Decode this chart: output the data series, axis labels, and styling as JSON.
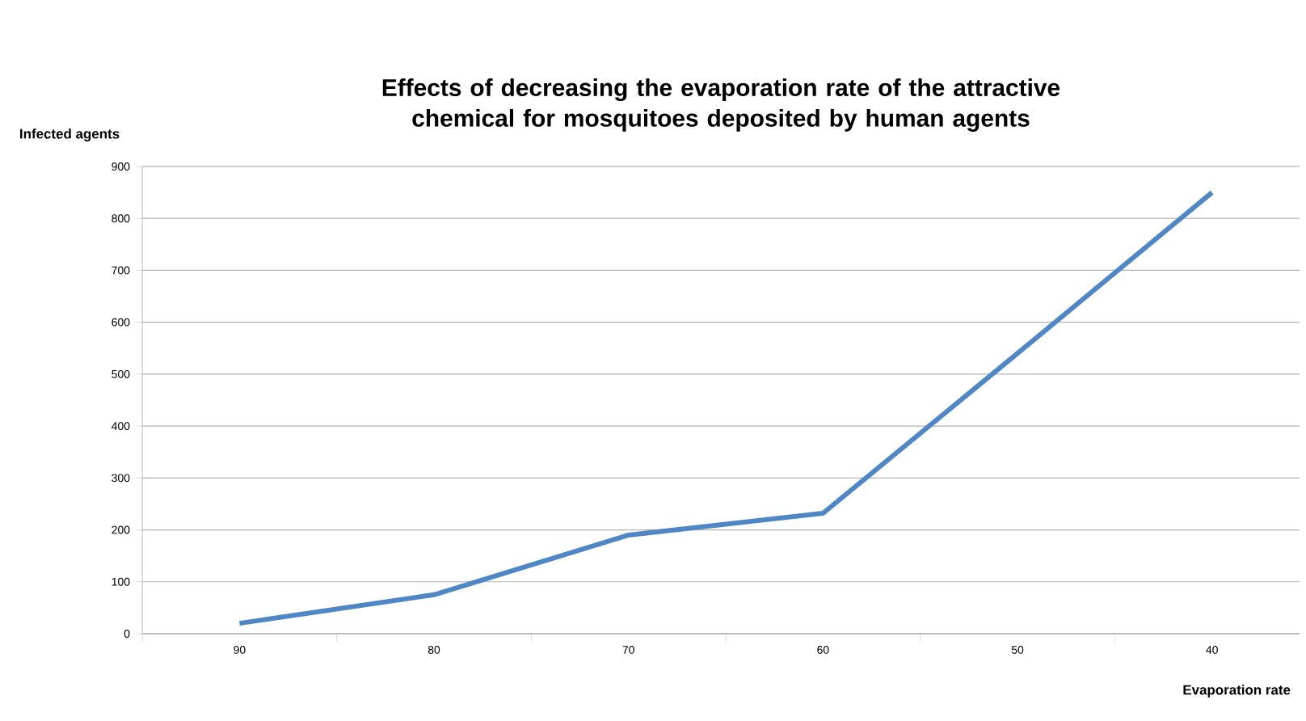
{
  "chart_data": {
    "type": "line",
    "title": "Effects of decreasing the evaporation rate of the attractive chemical for mosquitoes deposited by human agents",
    "xlabel": "Evaporation rate",
    "ylabel": "Infected agents",
    "categories": [
      "90",
      "80",
      "70",
      "60",
      "50",
      "40"
    ],
    "values": [
      20,
      75,
      190,
      232,
      540,
      850
    ],
    "color": "#4f86c6",
    "ylim": [
      0,
      900
    ],
    "yticks": [
      0,
      100,
      200,
      300,
      400,
      500,
      600,
      700,
      800,
      900
    ],
    "grid": "y"
  }
}
